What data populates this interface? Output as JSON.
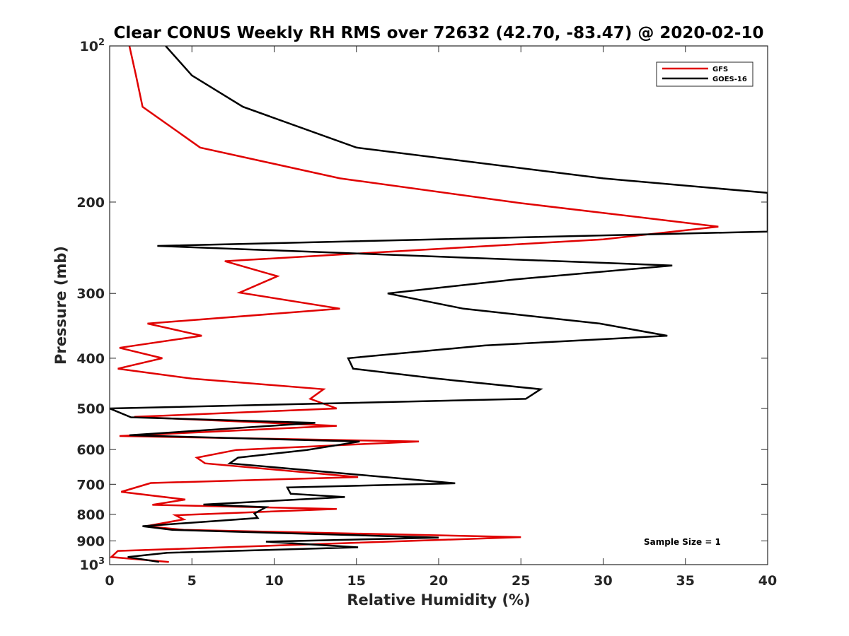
{
  "chart_data": {
    "type": "line",
    "title": "Clear CONUS Weekly RH RMS over 72632 (42.70, -83.47) @ 2020-02-10",
    "xlabel": "Relative Humidity (%)",
    "ylabel": "Pressure (mb)",
    "xlim": [
      0,
      40
    ],
    "ylim": [
      100,
      1000
    ],
    "yscale": "log",
    "y_reversed": true,
    "x_ticks": [
      "0",
      "5",
      "10",
      "15",
      "20",
      "25",
      "30",
      "35",
      "40"
    ],
    "y_ticks": [
      {
        "value": 100,
        "base": "10",
        "exp": "2"
      },
      {
        "value": 200,
        "label": "200"
      },
      {
        "value": 300,
        "label": "300"
      },
      {
        "value": 400,
        "label": "400"
      },
      {
        "value": 500,
        "label": "500"
      },
      {
        "value": 600,
        "label": "600"
      },
      {
        "value": 700,
        "label": "700"
      },
      {
        "value": 800,
        "label": "800"
      },
      {
        "value": 900,
        "label": "900"
      },
      {
        "value": 1000,
        "base": "10",
        "exp": "3"
      }
    ],
    "grid": false,
    "legend_position": "top-right",
    "annotation": "Sample Size = 1",
    "series": [
      {
        "name": "GFS",
        "color": "#e00000",
        "points": [
          [
            1.2,
            100
          ],
          [
            1.6,
            114
          ],
          [
            2.0,
            131
          ],
          [
            5.5,
            157
          ],
          [
            14.0,
            180
          ],
          [
            25.0,
            201
          ],
          [
            37.0,
            223
          ],
          [
            30.0,
            236
          ],
          [
            7.0,
            260
          ],
          [
            10.2,
            278
          ],
          [
            7.9,
            299
          ],
          [
            14.0,
            321
          ],
          [
            2.3,
            343
          ],
          [
            5.6,
            362
          ],
          [
            0.6,
            382
          ],
          [
            3.2,
            400
          ],
          [
            0.5,
            419
          ],
          [
            5.0,
            438
          ],
          [
            13.0,
            459
          ],
          [
            12.2,
            479
          ],
          [
            13.8,
            500
          ],
          [
            1.5,
            519
          ],
          [
            13.8,
            540
          ],
          [
            0.6,
            565
          ],
          [
            18.8,
            579
          ],
          [
            7.7,
            601
          ],
          [
            5.3,
            622
          ],
          [
            5.8,
            638
          ],
          [
            15.1,
            678
          ],
          [
            2.5,
            696
          ],
          [
            0.7,
            724
          ],
          [
            4.6,
            749
          ],
          [
            2.6,
            767
          ],
          [
            13.8,
            781
          ],
          [
            4.0,
            803
          ],
          [
            4.5,
            818
          ],
          [
            2.2,
            843
          ],
          [
            4.5,
            857
          ],
          [
            25.0,
            885
          ],
          [
            0.5,
            941
          ],
          [
            0.1,
            967
          ],
          [
            3.6,
            988
          ]
        ]
      },
      {
        "name": "GOES-16",
        "color": "#000000",
        "points": [
          [
            3.4,
            100
          ],
          [
            5.0,
            114
          ],
          [
            8.1,
            131
          ],
          [
            15.0,
            157
          ],
          [
            30.0,
            180
          ],
          [
            40.0,
            192
          ],
          [
            40.0,
            228
          ],
          [
            2.9,
            243
          ],
          [
            34.2,
            265
          ],
          [
            24.6,
            282
          ],
          [
            16.9,
            300
          ],
          [
            21.5,
            321
          ],
          [
            29.8,
            343
          ],
          [
            33.9,
            362
          ],
          [
            22.8,
            378
          ],
          [
            14.5,
            400
          ],
          [
            14.8,
            419
          ],
          [
            19.9,
            438
          ],
          [
            26.2,
            459
          ],
          [
            25.3,
            479
          ],
          [
            0.0,
            500
          ],
          [
            1.3,
            520
          ],
          [
            12.5,
            533
          ],
          [
            1.2,
            563
          ],
          [
            15.2,
            579
          ],
          [
            12.0,
            601
          ],
          [
            7.8,
            622
          ],
          [
            7.3,
            638
          ],
          [
            21.0,
            697
          ],
          [
            10.8,
            710
          ],
          [
            11.0,
            730
          ],
          [
            14.3,
            741
          ],
          [
            5.7,
            766
          ],
          [
            9.5,
            775
          ],
          [
            8.8,
            797
          ],
          [
            9.0,
            813
          ],
          [
            2.0,
            843
          ],
          [
            3.8,
            857
          ],
          [
            20.0,
            887
          ],
          [
            9.5,
            903
          ],
          [
            15.1,
            926
          ],
          [
            3.5,
            949
          ],
          [
            1.1,
            967
          ],
          [
            3.0,
            988
          ]
        ]
      }
    ]
  }
}
